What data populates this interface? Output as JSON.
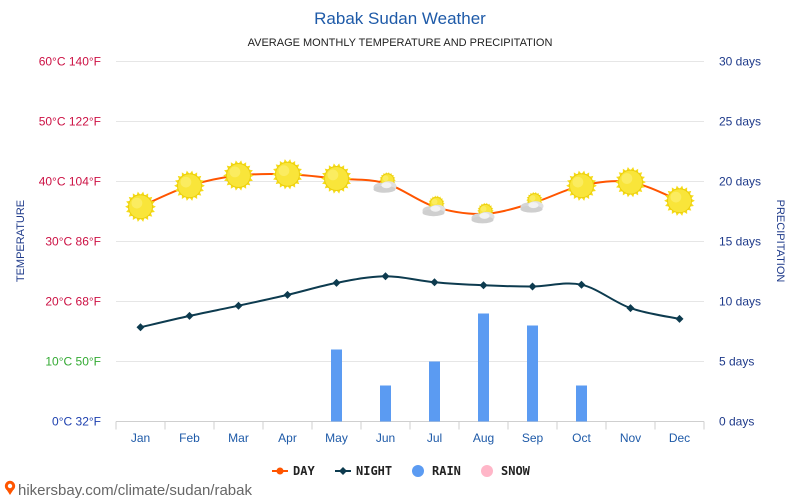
{
  "chart_data": {
    "type": "line",
    "title": "Rabak Sudan Weather",
    "subtitle": "AVERAGE MONTHLY TEMPERATURE AND PRECIPITATION",
    "ylabel_left": "TEMPERATURE",
    "ylabel_right": "PRECIPITATION",
    "categories": [
      "Jan",
      "Feb",
      "Mar",
      "Apr",
      "May",
      "Jun",
      "Jul",
      "Aug",
      "Sep",
      "Oct",
      "Nov",
      "Dec"
    ],
    "left_ticks": [
      {
        "value": 0,
        "label": "0°C 32°F",
        "color": "#1e40af"
      },
      {
        "value": 10,
        "label": "10°C 50°F",
        "color": "#33aa33"
      },
      {
        "value": 20,
        "label": "20°C 68°F",
        "color": "#cc1144"
      },
      {
        "value": 30,
        "label": "30°C 86°F",
        "color": "#cc1144"
      },
      {
        "value": 40,
        "label": "40°C 104°F",
        "color": "#cc1144"
      },
      {
        "value": 50,
        "label": "50°C 122°F",
        "color": "#cc1144"
      },
      {
        "value": 60,
        "label": "60°C 140°F",
        "color": "#cc1144"
      }
    ],
    "right_ticks": [
      {
        "value": 0,
        "label": "0 days"
      },
      {
        "value": 5,
        "label": "5 days"
      },
      {
        "value": 10,
        "label": "10 days"
      },
      {
        "value": 15,
        "label": "15 days"
      },
      {
        "value": 20,
        "label": "20 days"
      },
      {
        "value": 25,
        "label": "25 days"
      },
      {
        "value": 30,
        "label": "30 days"
      }
    ],
    "ylim_left": [
      0,
      60
    ],
    "ylim_right": [
      0,
      30
    ],
    "series": [
      {
        "name": "DAY",
        "color": "#ff5500",
        "values": [
          35.8,
          39.3,
          41.0,
          41.2,
          40.5,
          39.7,
          35.8,
          34.6,
          36.4,
          39.3,
          39.9,
          36.8
        ],
        "weather": [
          "sun",
          "sun",
          "sun",
          "sun",
          "sun",
          "partly",
          "partly",
          "partly",
          "partly",
          "sun",
          "sun",
          "sun"
        ]
      },
      {
        "name": "NIGHT",
        "color": "#0d3b4f",
        "values": [
          15.7,
          17.6,
          19.3,
          21.1,
          23.1,
          24.2,
          23.2,
          22.7,
          22.5,
          22.8,
          18.9,
          17.1
        ]
      },
      {
        "name": "RAIN",
        "color": "#5b9bf2",
        "values": [
          0,
          0,
          0,
          0,
          6,
          3,
          5,
          9,
          8,
          3,
          0,
          0
        ]
      },
      {
        "name": "SNOW",
        "color": "#ffb6c8",
        "values": [
          0,
          0,
          0,
          0,
          0,
          0,
          0,
          0,
          0,
          0,
          0,
          0
        ]
      }
    ],
    "grid": true,
    "legend": "bottom"
  },
  "footer": {
    "text": "hikersbay.com/climate/sudan/rabak"
  },
  "colors": {
    "title": "#1e5aa8",
    "axis_month": "#1e5aa8",
    "right_axis": "#1e3a8a",
    "grid": "#e6e6e6"
  }
}
